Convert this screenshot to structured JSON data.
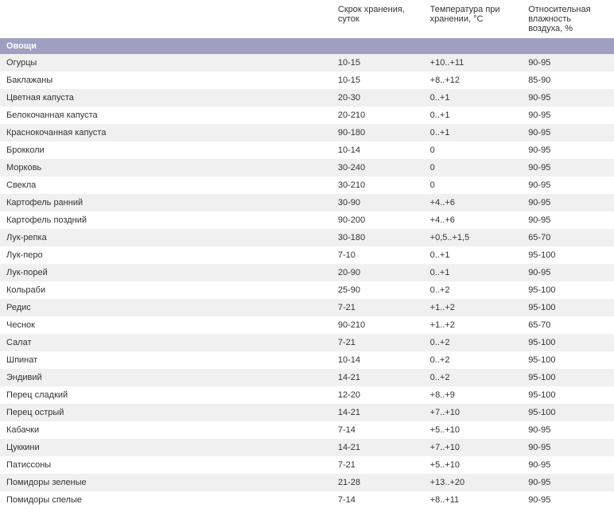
{
  "table": {
    "columns": [
      {
        "key": "name",
        "label": ""
      },
      {
        "key": "storage",
        "label": "Скрок хранения, суток"
      },
      {
        "key": "temp",
        "label": "Температура при хранении, °С"
      },
      {
        "key": "humidity",
        "label": "Относительная влажность воздуха, %"
      }
    ],
    "section_header": "Овощи",
    "rows": [
      {
        "name": "Огурцы",
        "storage": "10-15",
        "temp": "+10..+11",
        "humidity": "90-95"
      },
      {
        "name": "Баклажаны",
        "storage": "10-15",
        "temp": "+8..+12",
        "humidity": "85-90"
      },
      {
        "name": "Цветная капуста",
        "storage": "20-30",
        "temp": "0..+1",
        "humidity": "90-95"
      },
      {
        "name": "Белокочанная капуста",
        "storage": "20-210",
        "temp": "0..+1",
        "humidity": "90-95"
      },
      {
        "name": "Краснокочанная капуста",
        "storage": "90-180",
        "temp": "0..+1",
        "humidity": "90-95"
      },
      {
        "name": "Брокколи",
        "storage": "10-14",
        "temp": "0",
        "humidity": "90-95"
      },
      {
        "name": "Морковь",
        "storage": "30-240",
        "temp": "0",
        "humidity": "90-95"
      },
      {
        "name": "Свекла",
        "storage": "30-210",
        "temp": "0",
        "humidity": "90-95"
      },
      {
        "name": "Картофель ранний",
        "storage": "30-90",
        "temp": "+4..+6",
        "humidity": "90-95"
      },
      {
        "name": "Картофель поздний",
        "storage": "90-200",
        "temp": "+4..+6",
        "humidity": "90-95"
      },
      {
        "name": "Лук-репка",
        "storage": "30-180",
        "temp": "+0,5..+1,5",
        "humidity": "65-70"
      },
      {
        "name": "Лук-перо",
        "storage": "7-10",
        "temp": "0..+1",
        "humidity": "95-100"
      },
      {
        "name": "Лук-порей",
        "storage": "20-90",
        "temp": "0..+1",
        "humidity": "90-95"
      },
      {
        "name": "Кольраби",
        "storage": "25-90",
        "temp": "0..+2",
        "humidity": "95-100"
      },
      {
        "name": "Редис",
        "storage": "7-21",
        "temp": "+1..+2",
        "humidity": "95-100"
      },
      {
        "name": "Чеснок",
        "storage": "90-210",
        "temp": "+1..+2",
        "humidity": "65-70"
      },
      {
        "name": "Салат",
        "storage": "7-21",
        "temp": "0..+2",
        "humidity": "95-100"
      },
      {
        "name": "Шпинат",
        "storage": "10-14",
        "temp": "0..+2",
        "humidity": "95-100"
      },
      {
        "name": "Эндивий",
        "storage": "14-21",
        "temp": "0..+2",
        "humidity": "95-100"
      },
      {
        "name": "Перец сладкий",
        "storage": "12-20",
        "temp": "+8..+9",
        "humidity": "95-100"
      },
      {
        "name": "Перец острый",
        "storage": "14-21",
        "temp": "+7..+10",
        "humidity": "95-100"
      },
      {
        "name": "Кабачки",
        "storage": "7-14",
        "temp": "+5..+10",
        "humidity": "90-95"
      },
      {
        "name": "Цуккини",
        "storage": "14-21",
        "temp": "+7..+10",
        "humidity": "90-95"
      },
      {
        "name": "Патиссоны",
        "storage": "7-21",
        "temp": "+5..+10",
        "humidity": "90-95"
      },
      {
        "name": "Помидоры зеленые",
        "storage": "21-28",
        "temp": "+13..+20",
        "humidity": "90-95"
      },
      {
        "name": "Помидоры спелые",
        "storage": "7-14",
        "temp": "+8..+11",
        "humidity": "90-95"
      }
    ],
    "colors": {
      "section_bg": "#9fa0c1",
      "section_text": "#ffffff",
      "row_alt_bg": "#f0f0f0",
      "row_bg": "#ffffff",
      "text": "#333333"
    }
  }
}
